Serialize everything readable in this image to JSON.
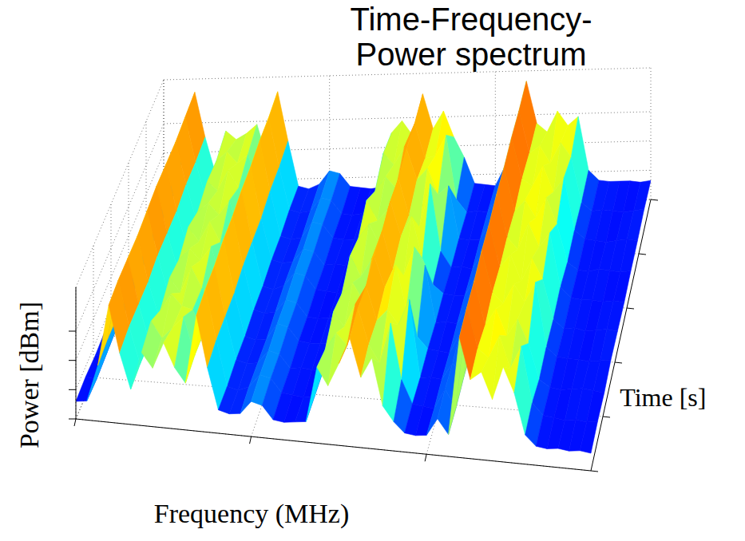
{
  "chart_data": {
    "type": "surface",
    "title": "Time-Frequency-Power spectrum",
    "x_label": "Frequency (MHz)",
    "y_label": "Time [s]",
    "z_label": "Power [dBm]",
    "x": [
      0,
      2,
      4,
      6,
      8,
      10,
      12,
      14,
      16,
      18,
      20,
      22,
      24,
      26,
      28,
      30,
      32,
      34,
      36,
      38,
      40,
      42,
      44,
      46,
      48,
      50,
      52,
      54,
      56,
      58,
      60,
      62,
      64,
      66,
      68,
      70,
      72,
      74,
      76,
      78,
      80,
      82,
      84,
      86,
      88,
      90,
      92,
      94
    ],
    "y": [
      0,
      1,
      2,
      3,
      4,
      5,
      6,
      7,
      8,
      9
    ],
    "z": [
      [
        -98,
        -97,
        -72,
        -30,
        -62,
        -86,
        -60,
        -70,
        -52,
        -68,
        -78,
        -31,
        -66,
        -94,
        -96,
        -95,
        -86,
        -88,
        -97,
        -98,
        -97,
        -96,
        -58,
        -70,
        -54,
        -36,
        -62,
        -48,
        -80,
        -90,
        -97,
        -98,
        -97,
        -85,
        -95,
        -28,
        -56,
        -50,
        -68,
        -45,
        -62,
        -90,
        -97,
        -98,
        -97,
        -98,
        -97,
        -98
      ],
      [
        -97,
        -98,
        -70,
        -29,
        -60,
        -85,
        -55,
        -66,
        -58,
        -50,
        -76,
        -30,
        -64,
        -95,
        -97,
        -94,
        -85,
        -87,
        -96,
        -97,
        -98,
        -97,
        -64,
        -52,
        -60,
        -34,
        -58,
        -70,
        -42,
        -80,
        -96,
        -97,
        -98,
        -84,
        -96,
        -27,
        -54,
        -60,
        -44,
        -66,
        -50,
        -88,
        -96,
        -97,
        -98,
        -97,
        -98,
        -97
      ],
      [
        -98,
        -97,
        -71,
        -30,
        -61,
        -86,
        -64,
        -52,
        -60,
        -62,
        -77,
        -31,
        -65,
        -94,
        -96,
        -95,
        -86,
        -88,
        -97,
        -96,
        -97,
        -98,
        -56,
        -66,
        -50,
        -37,
        -60,
        -52,
        -62,
        -44,
        -97,
        -96,
        -97,
        -85,
        -95,
        -28,
        -58,
        -46,
        -64,
        -52,
        -68,
        -92,
        -97,
        -98,
        -97,
        -96,
        -97,
        -98
      ],
      [
        -97,
        -96,
        -72,
        -31,
        -62,
        -85,
        -58,
        -68,
        -50,
        -64,
        -78,
        -30,
        -66,
        -95,
        -97,
        -96,
        -85,
        -87,
        -96,
        -97,
        -97,
        -96,
        -62,
        -54,
        -66,
        -35,
        -56,
        -40,
        -70,
        -88,
        -96,
        -97,
        -98,
        -84,
        -96,
        -27,
        -55,
        -62,
        -48,
        -60,
        -46,
        -90,
        -96,
        -97,
        -97,
        -98,
        -97,
        -96
      ],
      [
        -98,
        -97,
        -70,
        -30,
        -60,
        -86,
        -62,
        -54,
        -62,
        -52,
        -76,
        -31,
        -64,
        -94,
        -96,
        -95,
        -86,
        -88,
        -97,
        -98,
        -97,
        -97,
        -54,
        -68,
        -56,
        -36,
        -62,
        -66,
        -46,
        -58,
        -97,
        -96,
        -97,
        -85,
        -95,
        -28,
        -57,
        -48,
        -66,
        -50,
        -64,
        -91,
        -97,
        -96,
        -98,
        -97,
        -96,
        -97
      ],
      [
        -97,
        -98,
        -71,
        -29,
        -61,
        -85,
        -56,
        -66,
        -52,
        -66,
        -77,
        -30,
        -65,
        -95,
        -97,
        -94,
        -85,
        -87,
        -96,
        -97,
        -98,
        -97,
        -60,
        -50,
        -64,
        -34,
        -58,
        -44,
        -72,
        -90,
        -96,
        -97,
        -97,
        -84,
        -96,
        -27,
        -56,
        -64,
        -46,
        -62,
        -52,
        -89,
        -96,
        -97,
        -97,
        -98,
        -97,
        -98
      ],
      [
        -98,
        -97,
        -72,
        -30,
        -62,
        -86,
        -62,
        -56,
        -64,
        -54,
        -78,
        -31,
        -66,
        -94,
        -96,
        -95,
        -86,
        -88,
        -97,
        -96,
        -97,
        -98,
        -52,
        -66,
        -58,
        -37,
        -62,
        -70,
        -40,
        -86,
        -97,
        -96,
        -98,
        -85,
        -95,
        -28,
        -58,
        -50,
        -62,
        -48,
        -66,
        -92,
        -97,
        -98,
        -96,
        -97,
        -98,
        -97
      ],
      [
        -97,
        -96,
        -70,
        -31,
        -60,
        -85,
        -58,
        -64,
        -50,
        -62,
        -76,
        -30,
        -64,
        -95,
        -97,
        -96,
        -85,
        -87,
        -96,
        -97,
        -97,
        -96,
        -64,
        -54,
        -62,
        -35,
        -56,
        -48,
        -66,
        -60,
        -96,
        -97,
        -97,
        -84,
        -96,
        -27,
        -55,
        -60,
        -46,
        -64,
        -54,
        -90,
        -96,
        -97,
        -98,
        -97,
        -96,
        -97
      ],
      [
        -98,
        -97,
        -71,
        -30,
        -61,
        -86,
        -60,
        -54,
        -62,
        -56,
        -77,
        -31,
        -65,
        -94,
        -96,
        -95,
        -86,
        -88,
        -97,
        -98,
        -97,
        -97,
        -56,
        -64,
        -52,
        -36,
        -60,
        -58,
        -44,
        -88,
        -97,
        -96,
        -97,
        -85,
        -95,
        -28,
        -57,
        -52,
        -64,
        -50,
        -60,
        -91,
        -97,
        -96,
        -97,
        -98,
        -97,
        -96
      ],
      [
        -97,
        -98,
        -70,
        -29,
        -60,
        -85,
        -56,
        -62,
        -58,
        -52,
        -76,
        -30,
        -64,
        -95,
        -97,
        -94,
        -85,
        -87,
        -96,
        -97,
        -98,
        -97,
        -60,
        -52,
        -62,
        -34,
        -58,
        -46,
        -64,
        -78,
        -96,
        -97,
        -98,
        -84,
        -96,
        -27,
        -56,
        -62,
        -48,
        -58,
        -52,
        -89,
        -96,
        -97,
        -97,
        -97,
        -98,
        -97
      ]
    ],
    "xlim": [
      0,
      94
    ],
    "ylim": [
      0,
      9
    ],
    "zlim": [
      -110,
      -20
    ],
    "xticks": [
      0,
      32,
      64
    ],
    "yticks": [
      0,
      1.8,
      3.6,
      5.4,
      7.2,
      9
    ],
    "zticks": [
      -110,
      -90,
      -70,
      -50
    ],
    "grid": true,
    "tick_labels": false
  }
}
